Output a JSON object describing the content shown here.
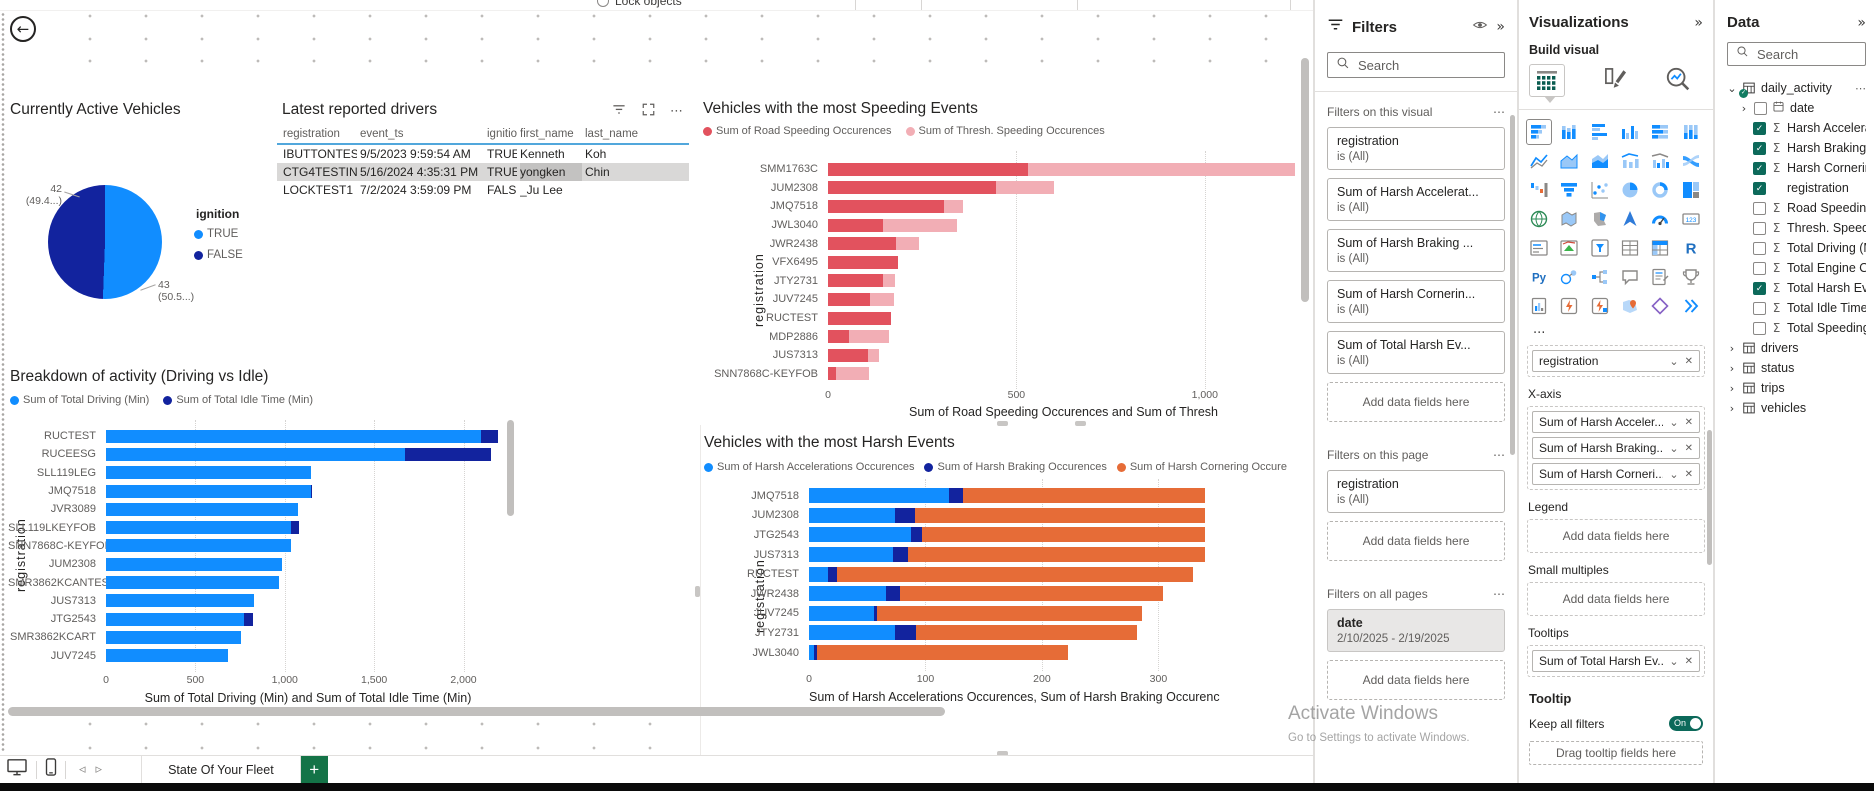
{
  "app": {
    "lock_objects_label": "Lock objects"
  },
  "back_button": {
    "name": "back"
  },
  "chart_data": [
    {
      "type": "pie",
      "title": "Currently Active Vehicles",
      "legend_title": "ignition",
      "slices": [
        {
          "label": "TRUE",
          "value": 43,
          "pct_label": "(50.5...)",
          "color": "#118DFF"
        },
        {
          "label": "FALSE",
          "value": 42,
          "pct_label": "(49.4...)",
          "color": "#12239E"
        }
      ],
      "callout_left": {
        "line1": "42",
        "line2": "(49.4...)"
      },
      "callout_right": {
        "line1": "43",
        "line2": "(50.5...)"
      }
    },
    {
      "type": "table",
      "title": "Latest reported drivers",
      "columns": [
        "registration",
        "event_ts",
        "ignition",
        "first_name",
        "last_name"
      ],
      "rows": [
        [
          "IBUTTONTEST",
          "9/5/2023 9:59:54 AM",
          "TRUE",
          "Kenneth",
          "Koh"
        ],
        [
          "CTG4TESTING",
          "5/16/2024 4:35:31 PM",
          "TRUE",
          "yongken",
          "Chin"
        ],
        [
          "LOCKTEST1",
          "7/2/2024 3:59:09 PM",
          "FALSE",
          "_Ju Lee",
          ""
        ]
      ],
      "selected_row_index": 1,
      "highlighted_cell": {
        "row": 1,
        "col": 3
      }
    },
    {
      "type": "bar",
      "title": "Vehicles with the most Speeding Events",
      "categories": [
        "SMM1763C",
        "JUM2308",
        "JMQ7518",
        "JWL3040",
        "JWR2438",
        "VFX6495",
        "JTY2731",
        "JUV7245",
        "RUCTEST",
        "MDP2886",
        "JUS7313",
        "SNN7868C-KEYFOB"
      ],
      "series": [
        {
          "name": "Sum of Road Speeding Occurences",
          "color": "#E2525E",
          "values": [
            530,
            447,
            308,
            145,
            181,
            187,
            145,
            111,
            166,
            55,
            105,
            20
          ]
        },
        {
          "name": "Sum of Thresh. Speeding Occurences",
          "color": "#F2AEB5",
          "values": [
            710,
            153,
            50,
            197,
            61,
            0,
            34,
            63,
            0,
            108,
            30,
            90
          ]
        }
      ],
      "ylabel": "registration",
      "xlabel": "Sum of Road Speeding Occurences and Sum of Thresh",
      "xlim": [
        0,
        1250
      ],
      "ticks": [
        {
          "v": 0,
          "label": "0"
        },
        {
          "v": 500,
          "label": "500"
        },
        {
          "v": 1000,
          "label": "1,000"
        }
      ],
      "grid": true,
      "legend_position": "top"
    },
    {
      "type": "bar",
      "title": "Breakdown of activity (Driving vs Idle)",
      "categories": [
        "RUCTEST",
        "RUCEESG",
        "SLL119LEG",
        "JMQ7518",
        "JVR3089",
        "SLL119LKEYFOB",
        "SNN7868C-KEYFOB",
        "JUM2308",
        "SMR3862KCANTEST",
        "JUS7313",
        "JTG2543",
        "SMR3862KCART",
        "JUV7245"
      ],
      "series": [
        {
          "name": "Sum of Total Driving (Min)",
          "color": "#118DFF",
          "values": [
            2095,
            1675,
            1145,
            1145,
            1075,
            1035,
            1035,
            985,
            970,
            830,
            770,
            755,
            685
          ]
        },
        {
          "name": "Sum of Total Idle Time (Min)",
          "color": "#12239E",
          "values": [
            100,
            480,
            0,
            10,
            0,
            45,
            0,
            0,
            0,
            0,
            55,
            0,
            0
          ]
        }
      ],
      "ylabel": "registration",
      "xlabel": "Sum of Total Driving (Min) and Sum of Total Idle Time (Min)",
      "xlim": [
        0,
        2260
      ],
      "ticks": [
        {
          "v": 0,
          "label": "0"
        },
        {
          "v": 500,
          "label": "500"
        },
        {
          "v": 1000,
          "label": "1,000"
        },
        {
          "v": 1500,
          "label": "1,500"
        },
        {
          "v": 2000,
          "label": "2,000"
        }
      ],
      "grid": true,
      "legend_position": "top"
    },
    {
      "type": "bar",
      "title": "Vehicles with the most Harsh Events",
      "categories": [
        "JMQ7518",
        "JUM2308",
        "JTG2543",
        "JUS7313",
        "RUCTEST",
        "JWR2438",
        "JUV7245",
        "JTY2731",
        "JWL3040"
      ],
      "series": [
        {
          "name": "Sum of Harsh Accelerations Occurences",
          "color": "#118DFF",
          "values": [
            120,
            74,
            88,
            72,
            16,
            66,
            56,
            74,
            4
          ]
        },
        {
          "name": "Sum of Harsh Braking Occurences",
          "color": "#12239E",
          "values": [
            12,
            17,
            9,
            13,
            8,
            12,
            2,
            18,
            3
          ]
        },
        {
          "name": "Sum of Harsh Cornering Occure",
          "color": "#E66C37",
          "values": [
            213,
            254,
            248,
            260,
            306,
            226,
            228,
            190,
            215
          ]
        }
      ],
      "ylabel": "registration",
      "xlabel": "Sum of Harsh Accelerations Occurences, Sum of Harsh Braking Occurenc",
      "xlim": [
        0,
        340
      ],
      "ticks": [
        {
          "v": 0,
          "label": "0"
        },
        {
          "v": 100,
          "label": "100"
        },
        {
          "v": 200,
          "label": "200"
        },
        {
          "v": 300,
          "label": "300"
        }
      ],
      "grid": true,
      "legend_position": "top"
    }
  ],
  "filters_pane": {
    "title": "Filters",
    "search_placeholder": "Search",
    "sections": [
      {
        "label": "Filters on this visual",
        "cards": [
          {
            "field": "registration",
            "cond": "is (All)"
          },
          {
            "field": "Sum of Harsh Accelerat...",
            "cond": "is (All)"
          },
          {
            "field": "Sum of Harsh Braking ...",
            "cond": "is (All)"
          },
          {
            "field": "Sum of Harsh Cornerin...",
            "cond": "is (All)"
          },
          {
            "field": "Sum of Total Harsh Ev...",
            "cond": "is (All)"
          }
        ],
        "add_label": "Add data fields here"
      },
      {
        "label": "Filters on this page",
        "cards": [
          {
            "field": "registration",
            "cond": "is (All)"
          }
        ],
        "add_label": "Add data fields here"
      },
      {
        "label": "Filters on all pages",
        "cards": [
          {
            "field": "date",
            "cond": "2/10/2025 - 2/19/2025",
            "highlighted": true
          }
        ],
        "add_label": "Add data fields here"
      }
    ]
  },
  "viz_pane": {
    "title": "Visualizations",
    "build_label": "Build visual",
    "icons": [
      "stacked-bar-chart",
      "stacked-column-chart",
      "clustered-bar-chart",
      "clustered-column-chart",
      "100-stacked-bar-chart",
      "100-stacked-column-chart",
      "line-chart",
      "area-chart",
      "stacked-area-chart",
      "line-and-stacked-column-chart",
      "line-and-clustered-column-chart",
      "ribbon-chart",
      "waterfall-chart",
      "funnel-chart",
      "scatter-chart",
      "pie-chart",
      "donut-chart",
      "treemap",
      "map",
      "filled-map",
      "shape-map",
      "azure-map",
      "gauge",
      "card",
      "multi-row-card",
      "kpi",
      "slicer",
      "table",
      "matrix",
      "r-script-visual",
      "python-visual",
      "key-influencers",
      "decomposition-tree",
      "qa-visual",
      "smart-narrative",
      "metrics",
      "paginated-report",
      "power-apps-visual",
      "power-automate-visual",
      "arcgis-map",
      "pbi-custom-visual",
      "get-more-visuals"
    ],
    "more_icon_label": "...",
    "wells": [
      {
        "label": "",
        "fields": [
          "registration"
        ]
      },
      {
        "label": "X-axis",
        "fields": [
          "Sum of Harsh Acceler...",
          "Sum of Harsh Braking...",
          "Sum of Harsh Corneri..."
        ]
      },
      {
        "label": "Legend",
        "placeholder": "Add data fields here"
      },
      {
        "label": "Small multiples",
        "placeholder": "Add data fields here"
      },
      {
        "label": "Tooltips",
        "fields": [
          "Sum of Total Harsh Ev..."
        ]
      }
    ],
    "tooltip_section": {
      "label": "Tooltip",
      "keep_filters_label": "Keep all filters",
      "toggle_state": "On",
      "drag_label": "Drag tooltip fields here"
    }
  },
  "data_pane": {
    "title": "Data",
    "search_placeholder": "Search",
    "tree": [
      {
        "name": "daily_activity",
        "kind": "table",
        "expanded": true,
        "more": "...",
        "fields": [
          {
            "name": "date",
            "icon": "calendar",
            "checked": false,
            "expandable": true
          },
          {
            "name": "Harsh Accelerat...",
            "icon": "sigma",
            "checked": true
          },
          {
            "name": "Harsh Braking ...",
            "icon": "sigma",
            "checked": true
          },
          {
            "name": "Harsh Cornerin...",
            "icon": "sigma",
            "checked": true
          },
          {
            "name": "registration",
            "icon": "none",
            "checked": true
          },
          {
            "name": "Road Speeding ...",
            "icon": "sigma",
            "checked": false
          },
          {
            "name": "Thresh. Speedin...",
            "icon": "sigma",
            "checked": false
          },
          {
            "name": "Total Driving (M...",
            "icon": "sigma",
            "checked": false
          },
          {
            "name": "Total Engine On...",
            "icon": "sigma",
            "checked": false
          },
          {
            "name": "Total Harsh Eve...",
            "icon": "sigma",
            "checked": true
          },
          {
            "name": "Total Idle Time (...",
            "icon": "sigma",
            "checked": false
          },
          {
            "name": "Total Speeding ...",
            "icon": "sigma",
            "checked": false
          }
        ]
      },
      {
        "name": "drivers",
        "kind": "table"
      },
      {
        "name": "status",
        "kind": "table"
      },
      {
        "name": "trips",
        "kind": "table"
      },
      {
        "name": "vehicles",
        "kind": "table"
      }
    ]
  },
  "bottom_bar": {
    "page_tab": "State Of Your Fleet",
    "new_page_label": "+"
  },
  "watermark": {
    "line1": "Activate Windows",
    "line2": "Go to Settings to activate Windows."
  }
}
